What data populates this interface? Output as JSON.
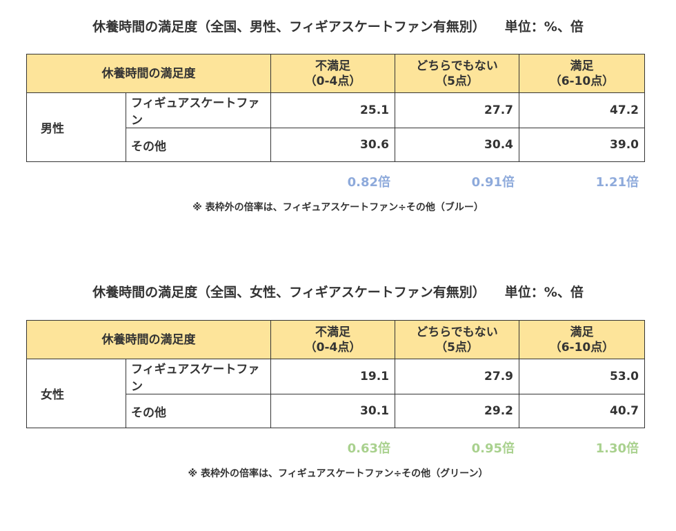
{
  "colors": {
    "header_bg": "#fde49a",
    "ratio_blue": "#8eaadb",
    "ratio_green": "#a9d18e",
    "text": "#333333",
    "border": "#333333"
  },
  "tables": [
    {
      "title": "休養時間の満足度（全国、男性、フィギアスケートファン有無別）",
      "unit": "単位：%、倍",
      "header": {
        "corner": "休養時間の満足度",
        "columns": [
          {
            "line1": "不満足",
            "line2": "（0-4点）"
          },
          {
            "line1": "どちらでもない",
            "line2": "（5点）"
          },
          {
            "line1": "満足",
            "line2": "（6-10点）"
          }
        ]
      },
      "group_label": "男性",
      "rows": [
        {
          "label": "フィギュアスケートファン",
          "values": [
            "25.1",
            "27.7",
            "47.2"
          ]
        },
        {
          "label": "その他",
          "values": [
            "30.6",
            "30.4",
            "39.0"
          ]
        }
      ],
      "ratios": [
        "0.82倍",
        "0.91倍",
        "1.21倍"
      ],
      "note": "※ 表枠外の倍率は、フィギュアスケートファン÷その他（ブルー）"
    },
    {
      "title": "休養時間の満足度（全国、女性、フィギアスケートファン有無別）",
      "unit": "単位：%、倍",
      "header": {
        "corner": "休養時間の満足度",
        "columns": [
          {
            "line1": "不満足",
            "line2": "（0-4点）"
          },
          {
            "line1": "どちらでもない",
            "line2": "（5点）"
          },
          {
            "line1": "満足",
            "line2": "（6-10点）"
          }
        ]
      },
      "group_label": "女性",
      "rows": [
        {
          "label": "フィギュアスケートファン",
          "values": [
            "19.1",
            "27.9",
            "53.0"
          ]
        },
        {
          "label": "その他",
          "values": [
            "30.1",
            "29.2",
            "40.7"
          ]
        }
      ],
      "ratios": [
        "0.63倍",
        "0.95倍",
        "1.30倍"
      ],
      "note": "※ 表枠外の倍率は、フィギュアスケートファン÷その他（グリーン）"
    }
  ]
}
